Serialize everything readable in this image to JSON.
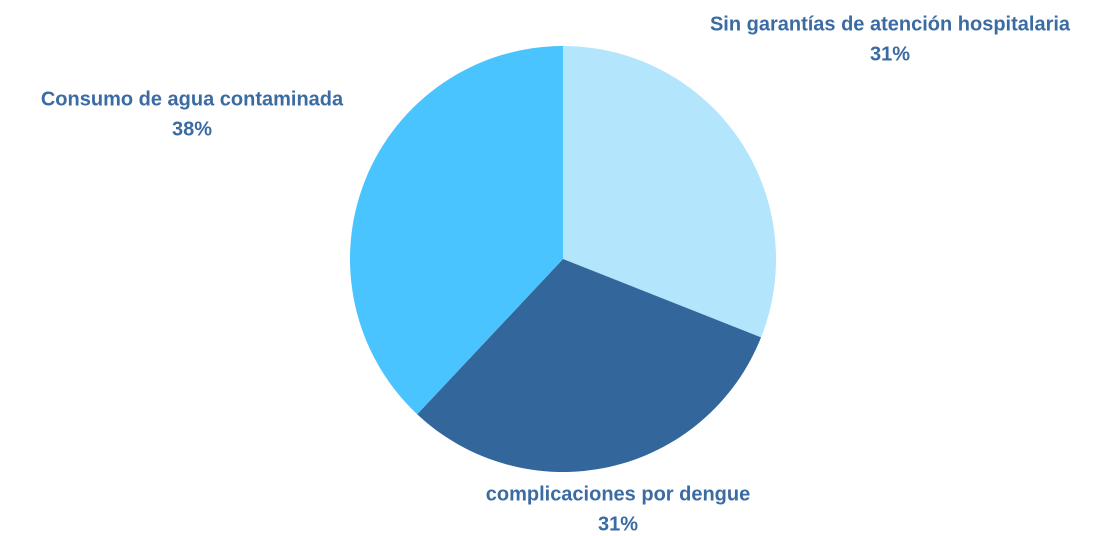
{
  "chart_data": {
    "type": "pie",
    "categories": [
      "Sin garantías de atención hospitalaria",
      "complicaciones por dengue",
      "Consumo de agua contaminada"
    ],
    "values": [
      31,
      31,
      38
    ],
    "value_labels": [
      "31%",
      "31%",
      "38%"
    ],
    "colors": [
      "#b3e5fd",
      "#33669b",
      "#4ac4fe"
    ]
  }
}
